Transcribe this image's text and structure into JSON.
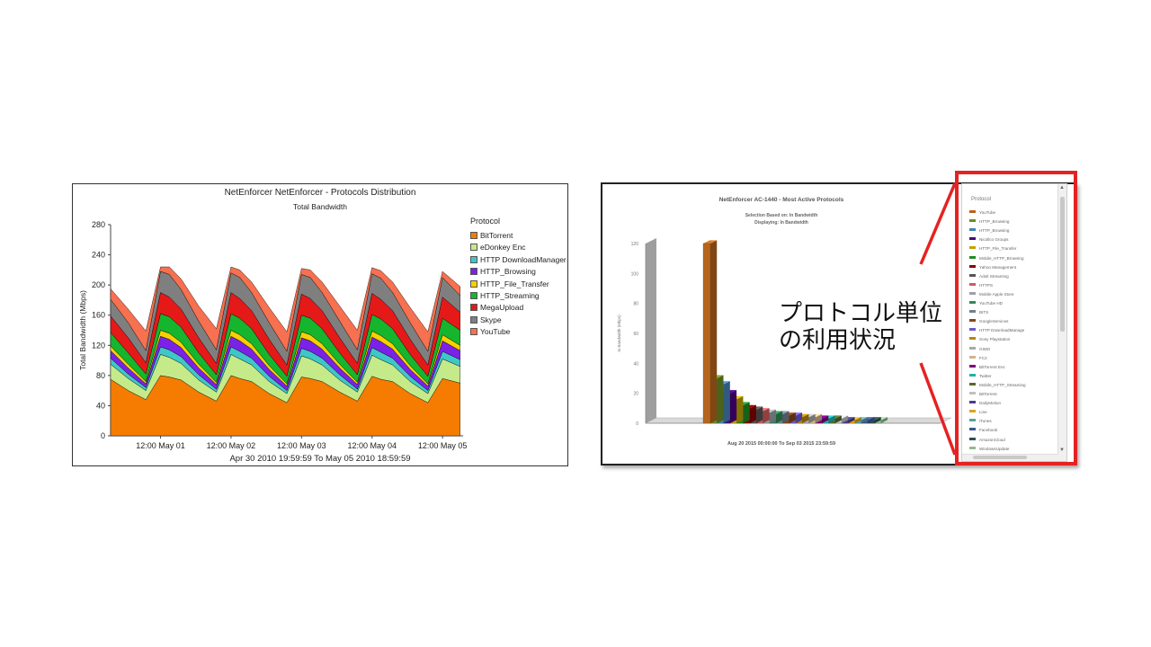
{
  "left_chart": {
    "title": "NetEnforcer NetEnforcer - Protocols Distribution",
    "subtitle": "Total Bandwidth",
    "ylabel": "Total Bandwidth (Mbps)",
    "range": "Apr 30 2010  19:59:59  To  May 05 2010  18:59:59",
    "legend_title": "Protocol"
  },
  "right_chart": {
    "title": "NetEnforcer AC-1440 - Most Active Protocols",
    "subtitle_line1": "Selection Based on: In Bandwidth",
    "subtitle_line2": "Displaying: In Bandwidth",
    "ylabel": "In Bandwidth (Mbps)",
    "range": "Aug 20 2015  00:00:00  To  Sep 03 2015  23:59:59",
    "legend_title": "Protocol",
    "legend_items": [
      {
        "label": "YouTube",
        "color": "#b5651d"
      },
      {
        "label": "HTTP_Browsing",
        "color": "#6b8e23"
      },
      {
        "label": "HTTP_Browsing",
        "color": "#4682b4"
      },
      {
        "label": "Nicollco Groups",
        "color": "#4b0082"
      },
      {
        "label": "HTTP_File_Transfer",
        "color": "#c0a000"
      },
      {
        "label": "Mobile_HTTP_Browsing",
        "color": "#228b22"
      },
      {
        "label": "Yahoo Management",
        "color": "#8b0000"
      },
      {
        "label": "Adult Streaming",
        "color": "#555555"
      },
      {
        "label": "HTTPS",
        "color": "#cd5c5c"
      },
      {
        "label": "Mobile Apple Store",
        "color": "#9aa0a6"
      },
      {
        "label": "YouTube HD",
        "color": "#2e8b57"
      },
      {
        "label": "BITS",
        "color": "#708090"
      },
      {
        "label": "GoogleServices",
        "color": "#8b4513"
      },
      {
        "label": "HTTP DownloadManage",
        "color": "#6a5acd"
      },
      {
        "label": "Sony Playstation",
        "color": "#b8860b"
      },
      {
        "label": "GIMO",
        "color": "#a9a9a9"
      },
      {
        "label": "FC2",
        "color": "#d2b48c"
      },
      {
        "label": "BitTorrent Enc",
        "color": "#800080"
      },
      {
        "label": "Twitter",
        "color": "#20b2aa"
      },
      {
        "label": "Mobile_HTTP_Streaming",
        "color": "#556b2f"
      },
      {
        "label": "BitTorrent",
        "color": "#c0c0c0"
      },
      {
        "label": "DailyMotion",
        "color": "#483d8b"
      },
      {
        "label": "Line",
        "color": "#daa520"
      },
      {
        "label": "iTunes",
        "color": "#5f9ea0"
      },
      {
        "label": "Facebook",
        "color": "#3b5998"
      },
      {
        "label": "AmazonCloud",
        "color": "#2f4f4f"
      },
      {
        "label": "WindowsUpdate",
        "color": "#8fbc8f"
      }
    ]
  },
  "callout": {
    "text": "プロトコル単位\nの利用状況"
  },
  "chart_data": [
    {
      "type": "area",
      "title": "NetEnforcer NetEnforcer - Protocols Distribution",
      "subtitle": "Total Bandwidth",
      "ylabel": "Total Bandwidth (Mbps)",
      "xlabel": "",
      "ylim": [
        0,
        280
      ],
      "y_ticks": [
        0,
        40,
        80,
        120,
        160,
        200,
        240,
        280
      ],
      "x_ticks": [
        "12:00 May 01",
        "12:00 May 02",
        "12:00 May 03",
        "12:00 May 04",
        "12:00 May 05"
      ],
      "x_hours": [
        0,
        6,
        12,
        17,
        20,
        24,
        30,
        36,
        41,
        44,
        48,
        54,
        60,
        65,
        68,
        72,
        78,
        84,
        89,
        92,
        96,
        102,
        108,
        113,
        119
      ],
      "stacked": true,
      "legend_placement": "right",
      "grid": false,
      "series": [
        {
          "name": "BitTorrent",
          "color": "#f57c00",
          "values": [
            75,
            60,
            48,
            80,
            78,
            74,
            58,
            46,
            80,
            76,
            72,
            56,
            44,
            78,
            76,
            72,
            58,
            46,
            79,
            75,
            72,
            56,
            44,
            76,
            70
          ]
        },
        {
          "name": "eDonkey Enc",
          "color": "#c5ea8a",
          "values": [
            20,
            16,
            12,
            28,
            26,
            22,
            16,
            12,
            28,
            26,
            22,
            16,
            12,
            28,
            26,
            22,
            16,
            12,
            28,
            26,
            22,
            16,
            12,
            26,
            22
          ]
        },
        {
          "name": "HTTP DownloadManager",
          "color": "#3fc7c7",
          "values": [
            8,
            6,
            4,
            10,
            10,
            9,
            7,
            4,
            10,
            10,
            9,
            7,
            4,
            10,
            10,
            9,
            7,
            4,
            10,
            10,
            9,
            7,
            4,
            10,
            9
          ]
        },
        {
          "name": "HTTP_Browsing",
          "color": "#7b22e6",
          "values": [
            10,
            8,
            5,
            14,
            14,
            12,
            9,
            6,
            14,
            14,
            12,
            9,
            6,
            14,
            14,
            12,
            9,
            6,
            14,
            14,
            12,
            9,
            6,
            14,
            12
          ]
        },
        {
          "name": "HTTP_File_Transfer",
          "color": "#f6d000",
          "values": [
            6,
            5,
            3,
            8,
            8,
            7,
            5,
            3,
            8,
            8,
            7,
            5,
            3,
            8,
            8,
            7,
            5,
            3,
            8,
            8,
            7,
            5,
            3,
            8,
            7
          ]
        },
        {
          "name": "HTTP_Streaming",
          "color": "#16b52e",
          "values": [
            18,
            15,
            10,
            22,
            22,
            20,
            15,
            10,
            22,
            22,
            20,
            15,
            10,
            22,
            22,
            20,
            15,
            10,
            22,
            22,
            20,
            15,
            10,
            22,
            20
          ]
        },
        {
          "name": "MegaUpload",
          "color": "#e61919",
          "values": [
            22,
            20,
            15,
            28,
            26,
            24,
            20,
            15,
            28,
            26,
            24,
            20,
            15,
            28,
            26,
            24,
            20,
            15,
            28,
            26,
            24,
            20,
            15,
            28,
            24
          ]
        },
        {
          "name": "Skype",
          "color": "#7f7f7f",
          "values": [
            22,
            20,
            16,
            28,
            30,
            26,
            22,
            18,
            26,
            28,
            24,
            22,
            18,
            26,
            28,
            24,
            22,
            18,
            26,
            28,
            24,
            22,
            18,
            26,
            22
          ]
        },
        {
          "name": "YouTube",
          "color": "#f7704f",
          "values": [
            14,
            18,
            26,
            6,
            10,
            14,
            20,
            28,
            8,
            10,
            14,
            20,
            26,
            8,
            10,
            14,
            20,
            26,
            8,
            10,
            14,
            20,
            26,
            8,
            12
          ]
        }
      ]
    },
    {
      "type": "bar",
      "title": "NetEnforcer AC-1440 - Most Active Protocols",
      "ylabel": "In Bandwidth (Mbps)",
      "ylim": [
        0,
        120
      ],
      "y_ticks": [
        0,
        20,
        40,
        60,
        80,
        100,
        120
      ],
      "categories": [
        "YouTube",
        "HTTP_Browsing",
        "HTTP_Browsing",
        "Nicollco Groups",
        "HTTP_File_Transfer",
        "Mobile_HTTP_Browsing",
        "Yahoo Management",
        "Adult Streaming",
        "HTTPS",
        "Mobile Apple Store",
        "YouTube HD",
        "BITS",
        "GoogleServices",
        "HTTP DownloadManage",
        "Sony Playstation",
        "GIMO",
        "FC2",
        "BitTorrent Enc",
        "Twitter",
        "Mobile_HTTP_Streaming",
        "BitTorrent",
        "DailyMotion",
        "Line",
        "iTunes",
        "Facebook",
        "AmazonCloud",
        "WindowsUpdate"
      ],
      "values": [
        120,
        30,
        26,
        20,
        16,
        12,
        10,
        9,
        8,
        7,
        6,
        6,
        5,
        5,
        4,
        4,
        4,
        3,
        3,
        3,
        3,
        2,
        2,
        2,
        2,
        2,
        2
      ],
      "grid": false,
      "legend_placement": "right"
    }
  ]
}
